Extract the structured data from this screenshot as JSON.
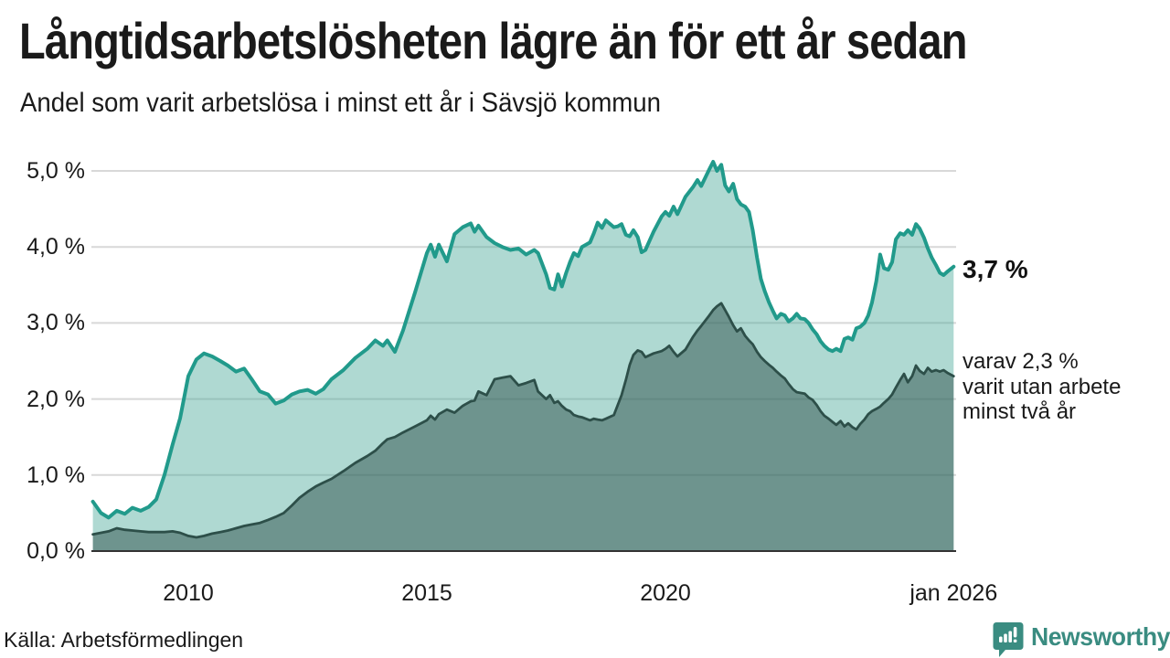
{
  "header": {
    "title": "Långtidsarbetslösheten lägre än för ett år sedan",
    "subtitle": "Andel som varit arbetslösa i minst ett år i Sävsjö kommun"
  },
  "annotations": {
    "latest_total": "3,7 %",
    "note_line1": "varav 2,3 %",
    "note_line2": "varit utan arbete",
    "note_line3": "minst två år"
  },
  "footer": {
    "source": "Källa: Arbetsförmedlingen",
    "brand": "Newsworthy",
    "brand_icon": "newsworthy-speech-bubble-bar-chart-icon"
  },
  "colors": {
    "line_total": "#219a8b",
    "fill_total": "rgba(77,170,155,0.45)",
    "line_two_year": "#2d4f49",
    "fill_two_year": "rgba(45,79,74,0.5)",
    "grid": "#d8d8d8",
    "axis": "#333333",
    "text": "#1a1a1a",
    "brand": "#3a8c81"
  },
  "chart_data": {
    "type": "area",
    "title": "Långtidsarbetslösheten lägre än för ett år sedan",
    "subtitle": "Andel som varit arbetslösa i minst ett år i Sävsjö kommun",
    "unit": "%",
    "grid": true,
    "legend_position": "right-annotations",
    "source": "Arbetsförmedlingen",
    "ylim": [
      0,
      5.2
    ],
    "x_range": [
      2008.0,
      2026.04
    ],
    "x_ticks": [
      {
        "label": "2010",
        "year": 2010
      },
      {
        "label": "2015",
        "year": 2015
      },
      {
        "label": "2020",
        "year": 2020
      },
      {
        "label": "jan 2026",
        "year": 2026.04
      }
    ],
    "y_ticks": [
      {
        "label": "0,0 %",
        "value": 0
      },
      {
        "label": "1,0 %",
        "value": 1
      },
      {
        "label": "2,0 %",
        "value": 2
      },
      {
        "label": "3,0 %",
        "value": 3
      },
      {
        "label": "4,0 %",
        "value": 4
      },
      {
        "label": "5,0 %",
        "value": 5
      }
    ],
    "x": [
      2008.0,
      2008.17,
      2008.33,
      2008.5,
      2008.67,
      2008.83,
      2009.0,
      2009.17,
      2009.33,
      2009.5,
      2009.67,
      2009.83,
      2010.0,
      2010.17,
      2010.33,
      2010.5,
      2010.67,
      2010.83,
      2011.0,
      2011.17,
      2011.33,
      2011.5,
      2011.67,
      2011.83,
      2012.0,
      2012.17,
      2012.33,
      2012.5,
      2012.67,
      2012.83,
      2013.0,
      2013.25,
      2013.5,
      2013.75,
      2013.92,
      2014.08,
      2014.17,
      2014.33,
      2014.5,
      2014.75,
      2015.0,
      2015.08,
      2015.17,
      2015.25,
      2015.42,
      2015.58,
      2015.75,
      2015.92,
      2016.0,
      2016.08,
      2016.25,
      2016.42,
      2016.58,
      2016.75,
      2016.92,
      2017.08,
      2017.25,
      2017.33,
      2017.5,
      2017.58,
      2017.67,
      2017.75,
      2017.83,
      2017.92,
      2018.0,
      2018.08,
      2018.17,
      2018.25,
      2018.42,
      2018.5,
      2018.58,
      2018.67,
      2018.75,
      2018.92,
      2019.0,
      2019.08,
      2019.17,
      2019.25,
      2019.33,
      2019.42,
      2019.5,
      2019.58,
      2019.75,
      2019.92,
      2020.0,
      2020.08,
      2020.17,
      2020.25,
      2020.42,
      2020.58,
      2020.67,
      2020.75,
      2020.92,
      2021.0,
      2021.08,
      2021.17,
      2021.25,
      2021.33,
      2021.42,
      2021.5,
      2021.58,
      2021.67,
      2021.75,
      2021.83,
      2021.92,
      2022.0,
      2022.08,
      2022.17,
      2022.25,
      2022.33,
      2022.42,
      2022.5,
      2022.58,
      2022.67,
      2022.75,
      2022.83,
      2022.92,
      2023.0,
      2023.08,
      2023.17,
      2023.25,
      2023.33,
      2023.42,
      2023.5,
      2023.58,
      2023.67,
      2023.75,
      2023.83,
      2023.92,
      2024.0,
      2024.08,
      2024.17,
      2024.25,
      2024.33,
      2024.42,
      2024.5,
      2024.58,
      2024.67,
      2024.75,
      2024.83,
      2024.92,
      2025.0,
      2025.08,
      2025.17,
      2025.25,
      2025.33,
      2025.42,
      2025.5,
      2025.58,
      2025.67,
      2025.75,
      2025.83,
      2025.92,
      2026.04
    ],
    "series": [
      {
        "name": "Andel som varit arbetslösa i minst ett år",
        "latest_label": "3,7 %",
        "values": [
          0.65,
          0.5,
          0.44,
          0.53,
          0.49,
          0.57,
          0.53,
          0.58,
          0.68,
          1.0,
          1.4,
          1.75,
          2.3,
          2.52,
          2.6,
          2.56,
          2.5,
          2.44,
          2.36,
          2.4,
          2.26,
          2.1,
          2.06,
          1.94,
          1.98,
          2.06,
          2.1,
          2.12,
          2.07,
          2.13,
          2.26,
          2.38,
          2.54,
          2.66,
          2.77,
          2.7,
          2.77,
          2.62,
          2.9,
          3.4,
          3.92,
          4.03,
          3.87,
          4.03,
          3.81,
          4.17,
          4.26,
          4.31,
          4.2,
          4.28,
          4.13,
          4.05,
          4.0,
          3.96,
          3.98,
          3.9,
          3.96,
          3.92,
          3.64,
          3.46,
          3.44,
          3.64,
          3.48,
          3.66,
          3.8,
          3.92,
          3.88,
          4.0,
          4.06,
          4.18,
          4.32,
          4.25,
          4.35,
          4.26,
          4.27,
          4.3,
          4.16,
          4.14,
          4.22,
          4.13,
          3.93,
          3.96,
          4.2,
          4.4,
          4.46,
          4.41,
          4.53,
          4.43,
          4.66,
          4.79,
          4.88,
          4.8,
          5.02,
          5.12,
          5.0,
          5.08,
          4.81,
          4.73,
          4.83,
          4.63,
          4.56,
          4.53,
          4.46,
          4.22,
          3.86,
          3.58,
          3.42,
          3.27,
          3.16,
          3.06,
          3.12,
          3.1,
          3.02,
          3.06,
          3.12,
          3.06,
          3.05,
          3.0,
          2.92,
          2.85,
          2.76,
          2.7,
          2.65,
          2.63,
          2.66,
          2.63,
          2.79,
          2.81,
          2.78,
          2.93,
          2.95,
          3.0,
          3.1,
          3.27,
          3.55,
          3.9,
          3.72,
          3.7,
          3.8,
          4.1,
          4.18,
          4.16,
          4.22,
          4.16,
          4.3,
          4.24,
          4.12,
          3.98,
          3.86,
          3.76,
          3.66,
          3.63,
          3.68,
          3.74
        ]
      },
      {
        "name": "varav utan arbete minst två år",
        "latest_label": "2,3 %",
        "values": [
          0.22,
          0.24,
          0.26,
          0.3,
          0.28,
          0.27,
          0.26,
          0.25,
          0.25,
          0.25,
          0.26,
          0.24,
          0.2,
          0.18,
          0.2,
          0.23,
          0.25,
          0.27,
          0.3,
          0.33,
          0.35,
          0.37,
          0.41,
          0.45,
          0.5,
          0.6,
          0.7,
          0.78,
          0.85,
          0.9,
          0.95,
          1.05,
          1.16,
          1.25,
          1.32,
          1.42,
          1.47,
          1.5,
          1.56,
          1.64,
          1.72,
          1.78,
          1.73,
          1.8,
          1.86,
          1.82,
          1.91,
          1.97,
          1.98,
          2.1,
          2.05,
          2.26,
          2.28,
          2.3,
          2.18,
          2.21,
          2.25,
          2.1,
          2.0,
          2.05,
          1.95,
          1.97,
          1.91,
          1.86,
          1.84,
          1.79,
          1.77,
          1.76,
          1.72,
          1.74,
          1.73,
          1.72,
          1.74,
          1.79,
          1.92,
          2.05,
          2.25,
          2.45,
          2.58,
          2.64,
          2.62,
          2.55,
          2.6,
          2.63,
          2.66,
          2.7,
          2.62,
          2.56,
          2.65,
          2.82,
          2.9,
          2.96,
          3.1,
          3.17,
          3.22,
          3.26,
          3.17,
          3.08,
          2.97,
          2.89,
          2.93,
          2.83,
          2.77,
          2.72,
          2.62,
          2.55,
          2.5,
          2.45,
          2.41,
          2.36,
          2.31,
          2.27,
          2.2,
          2.13,
          2.09,
          2.08,
          2.07,
          2.02,
          1.99,
          1.92,
          1.84,
          1.78,
          1.74,
          1.7,
          1.66,
          1.71,
          1.64,
          1.68,
          1.63,
          1.6,
          1.67,
          1.73,
          1.8,
          1.84,
          1.87,
          1.9,
          1.95,
          2.0,
          2.06,
          2.15,
          2.25,
          2.33,
          2.22,
          2.3,
          2.44,
          2.37,
          2.33,
          2.41,
          2.36,
          2.38,
          2.36,
          2.38,
          2.34,
          2.3
        ]
      }
    ]
  }
}
